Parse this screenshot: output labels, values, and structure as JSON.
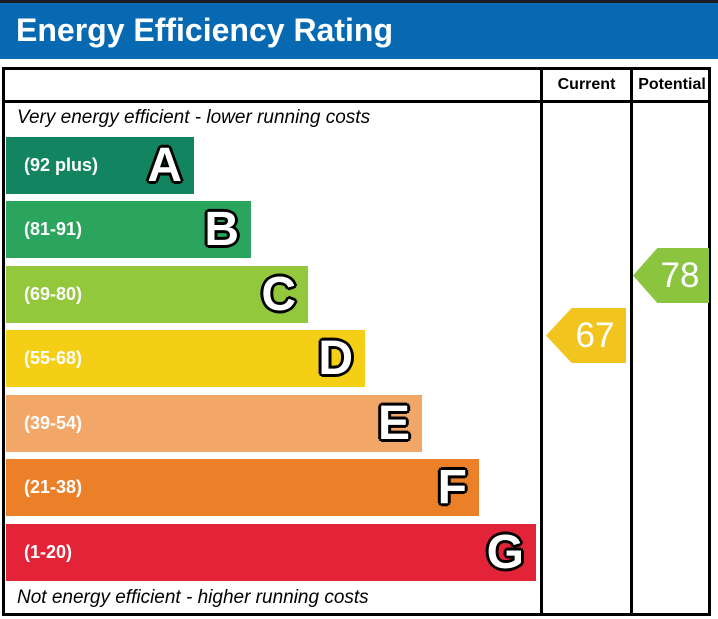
{
  "header": {
    "title": "Energy Efficiency Rating",
    "bg_color": "#0669b2",
    "text_color": "#ffffff"
  },
  "table": {
    "col_current": "Current",
    "col_potential": "Potential",
    "border_color": "#000000"
  },
  "captions": {
    "top": "Very energy efficient - lower running costs",
    "bottom": "Not energy efficient - higher running costs"
  },
  "chart_data": {
    "type": "bar",
    "title": "Energy Efficiency Rating",
    "orientation": "horizontal",
    "columns": [
      "Current",
      "Potential"
    ],
    "bands": [
      {
        "letter": "A",
        "range_label": "(92 plus)",
        "color": "#128560"
      },
      {
        "letter": "B",
        "range_label": "(81-91)",
        "color": "#2ba55d"
      },
      {
        "letter": "C",
        "range_label": "(69-80)",
        "color": "#93c83d"
      },
      {
        "letter": "D",
        "range_label": "(55-68)",
        "color": "#f5ce16"
      },
      {
        "letter": "E",
        "range_label": "(39-54)",
        "color": "#f2a768"
      },
      {
        "letter": "F",
        "range_label": "(21-38)",
        "color": "#ec8028"
      },
      {
        "letter": "G",
        "range_label": "(1-20)",
        "color": "#e32438"
      }
    ],
    "markers": {
      "current": {
        "column": "Current",
        "value": 67,
        "color": "#f1c51d"
      },
      "potential": {
        "column": "Potential",
        "value": 78,
        "color": "#8bc540"
      }
    }
  }
}
